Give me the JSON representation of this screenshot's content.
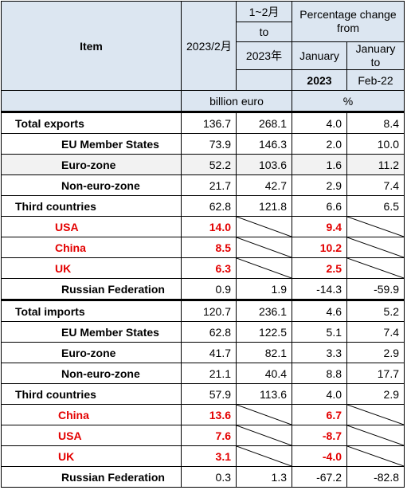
{
  "header": {
    "item": "Item",
    "month_col": "2023/2月",
    "cum_col_line1": "1~2月",
    "cum_col_line2": "to",
    "cum_col_line3": "2023年",
    "pct_title": "Percentage change from",
    "pct_january": "January",
    "pct_january_to": "January to",
    "pct_2023": "2023",
    "pct_feb22": "Feb-22",
    "unit_value": "billion euro",
    "unit_pct": "%"
  },
  "rows": [
    {
      "label": "Total exports",
      "m": "136.7",
      "c": "268.1",
      "p1": "4.0",
      "p2": "8.4"
    },
    {
      "label": "EU Member States",
      "m": "73.9",
      "c": "146.3",
      "p1": "2.0",
      "p2": "10.0"
    },
    {
      "label": "Euro-zone",
      "m": "52.2",
      "c": "103.6",
      "p1": "1.6",
      "p2": "11.2"
    },
    {
      "label": "Non-euro-zone",
      "m": "21.7",
      "c": "42.7",
      "p1": "2.9",
      "p2": "7.4"
    },
    {
      "label": "Third countries",
      "m": "62.8",
      "c": "121.8",
      "p1": "6.6",
      "p2": "6.5"
    },
    {
      "label": "USA",
      "m": "14.0",
      "p1": "9.4"
    },
    {
      "label": "China",
      "m": "8.5",
      "p1": "10.2"
    },
    {
      "label": "UK",
      "m": "6.3",
      "p1": "2.5"
    },
    {
      "label": "Russian Federation",
      "m": "0.9",
      "c": "1.9",
      "p1": "-14.3",
      "p2": "-59.9"
    },
    {
      "label": "Total imports",
      "m": "120.7",
      "c": "236.1",
      "p1": "4.6",
      "p2": "5.2"
    },
    {
      "label": "EU Member States",
      "m": "62.8",
      "c": "122.5",
      "p1": "5.1",
      "p2": "7.4"
    },
    {
      "label": "Euro-zone",
      "m": "41.7",
      "c": "82.1",
      "p1": "3.3",
      "p2": "2.9"
    },
    {
      "label": "Non-euro-zone",
      "m": "21.1",
      "c": "40.4",
      "p1": "8.8",
      "p2": "17.7"
    },
    {
      "label": "Third countries",
      "m": "57.9",
      "c": "113.6",
      "p1": "4.0",
      "p2": "2.9"
    },
    {
      "label": "China",
      "m": "13.6",
      "p1": "6.7"
    },
    {
      "label": "USA",
      "m": "7.6",
      "p1": "-8.7"
    },
    {
      "label": "UK",
      "m": "3.1",
      "p1": "-4.0"
    },
    {
      "label": "Russian Federation",
      "m": "0.3",
      "c": "1.3",
      "p1": "-67.2",
      "p2": "-82.8"
    }
  ],
  "colors": {
    "header_bg": "#dce6f1",
    "highlight_text": "#e30000"
  }
}
